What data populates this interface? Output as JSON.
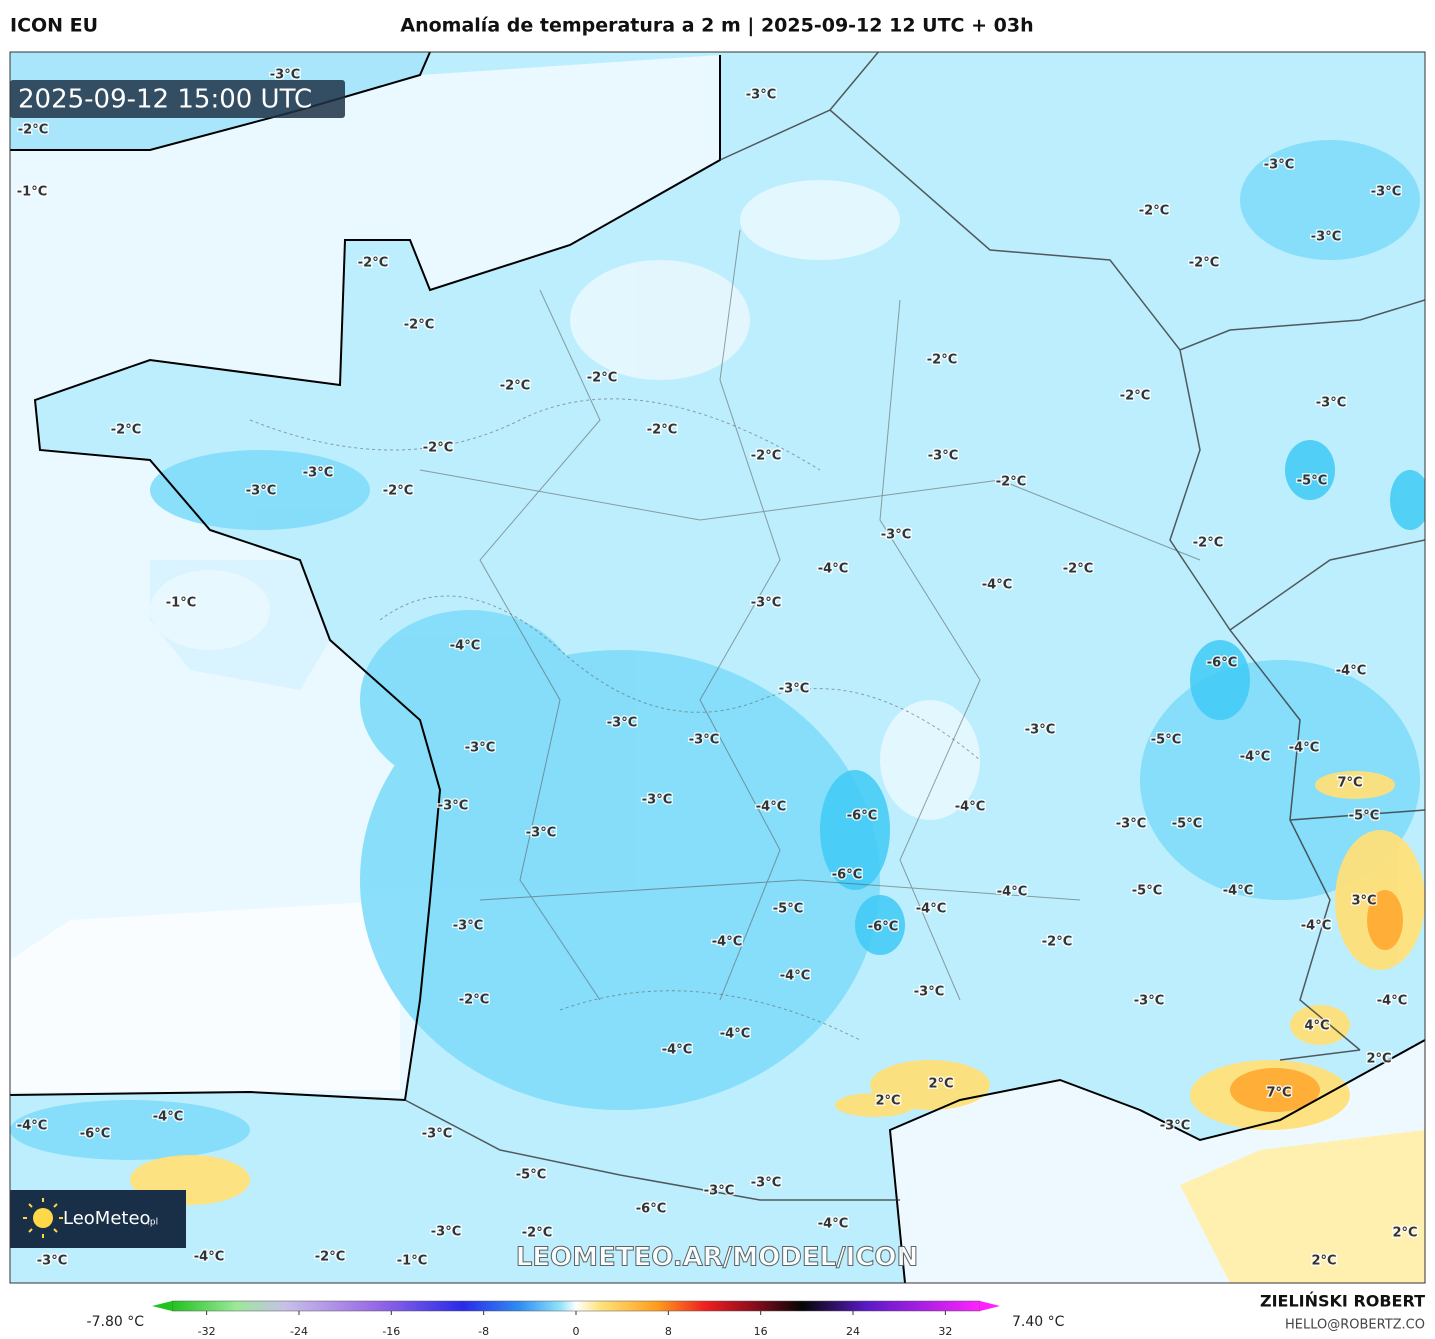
{
  "header": {
    "model": "ICON EU",
    "title": "Anomalía de temperatura a 2 m | 2025-09-12 12 UTC + 03h"
  },
  "map": {
    "timestamp": "2025-09-12 15:00 UTC",
    "watermark": "LEOMETEO.AR/MODEL/ICON",
    "logo": {
      "name": "LeoMeteo",
      "suffix": ".pl"
    },
    "contour_labels": [
      "-3°C",
      "-2°C",
      "-1°C",
      "-3°C",
      "-2°C",
      "-3°C",
      "-3°C",
      "-3°C",
      "-2°C",
      "-2°C",
      "-2°C",
      "-2°C",
      "-2°C",
      "-2°C",
      "-2°C",
      "-3°C",
      "-2°C",
      "-2°C",
      "-2°C",
      "-2°C",
      "-3°C",
      "-5°C",
      "-3°C",
      "-3°C",
      "-2°C",
      "-2°C",
      "-3°C",
      "-2°C",
      "-4°C",
      "-2°C",
      "-4°C",
      "-3°C",
      "-1°C",
      "-4°C",
      "-6°C",
      "-4°C",
      "-3°C",
      "-3°C",
      "-3°C",
      "-3°C",
      "-5°C",
      "-4°C",
      "-4°C",
      "-3°C",
      "7°C",
      "-3°C",
      "-4°C",
      "-6°C",
      "-4°C",
      "-3°C",
      "-5°C",
      "-3°C",
      "-3°C",
      "-5°C",
      "-6°C",
      "-5°C",
      "-4°C",
      "-4°C",
      "-5°C",
      "-4°C",
      "-6°C",
      "3°C",
      "-3°C",
      "-4°C",
      "-2°C",
      "-4°C",
      "-4°C",
      "-2°C",
      "-3°C",
      "-3°C",
      "-4°C",
      "4°C",
      "-4°C",
      "-4°C",
      "2°C",
      "2°C",
      "2°C",
      "7°C",
      "-4°C",
      "-6°C",
      "-4°C",
      "-3°C",
      "-3°C",
      "-5°C",
      "-3°C",
      "-3°C",
      "-6°C",
      "-4°C",
      "-2°C",
      "-3°C",
      "2°C",
      "-4°C",
      "-2°C",
      "-1°C",
      "-3°C",
      "2°C"
    ]
  },
  "colorbar": {
    "min_label": "-7.80 °C",
    "max_label": "7.40 °C",
    "lim": [
      -35,
      35
    ],
    "ticks": [
      -32,
      -24,
      -16,
      -8,
      0,
      8,
      16,
      24,
      32
    ]
  },
  "footer": {
    "author": "ZIELIŃSKI ROBERT",
    "email": "HELLO@ROBERTZ.CO"
  }
}
